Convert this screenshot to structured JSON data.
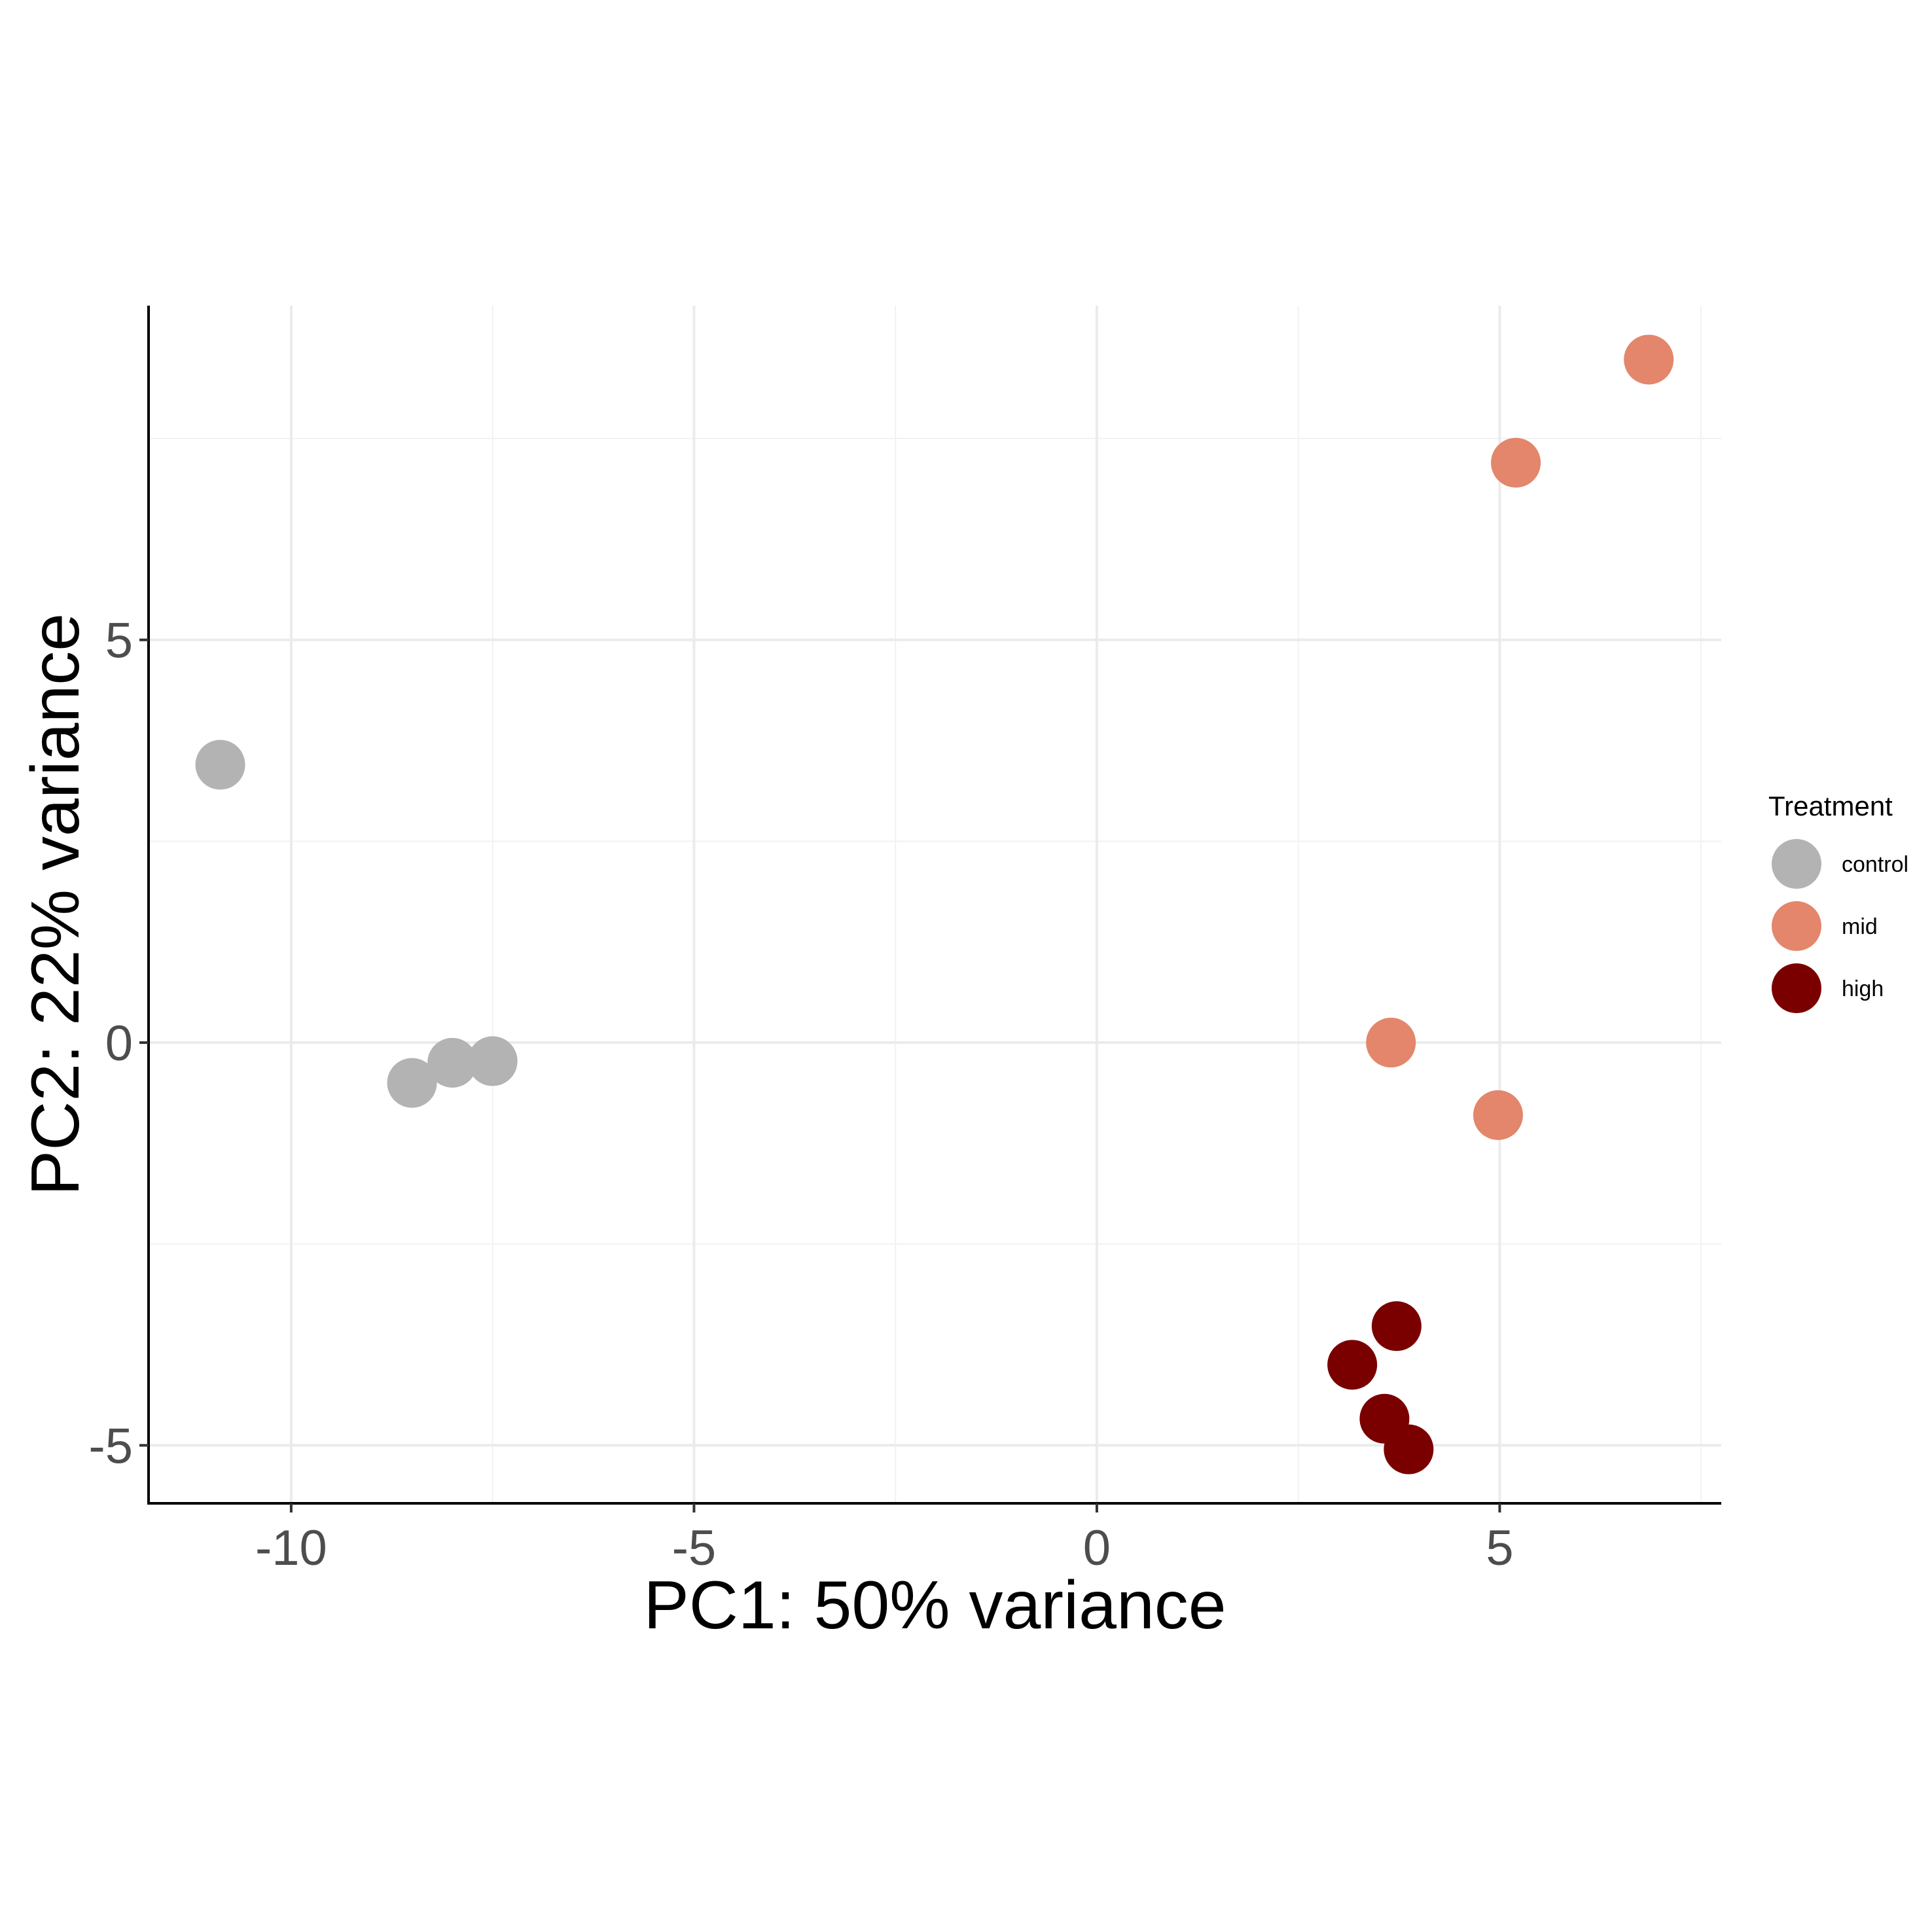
{
  "chart_data": {
    "type": "scatter",
    "title": "",
    "xlabel": "PC1: 50% variance",
    "ylabel": "PC2: 22% variance",
    "xlim": [
      -11.77,
      7.75
    ],
    "ylim": [
      -5.72,
      9.15
    ],
    "x_ticks": [
      -10,
      -5,
      0,
      5
    ],
    "x_tick_labels": [
      "-10",
      "-5",
      "0",
      "5"
    ],
    "y_ticks": [
      -5,
      0,
      5
    ],
    "y_tick_labels": [
      "-5",
      "0",
      "5"
    ],
    "grid": true,
    "legend": {
      "title": "Treatment",
      "position": "right"
    },
    "series": [
      {
        "name": "control",
        "color": "#b3b3b3",
        "points": [
          [
            -10.88,
            3.45
          ],
          [
            -8.5,
            -0.5
          ],
          [
            -8.0,
            -0.25
          ],
          [
            -7.5,
            -0.23
          ]
        ]
      },
      {
        "name": "mid",
        "color": "#e3866b",
        "points": [
          [
            6.85,
            8.48
          ],
          [
            5.2,
            7.2
          ],
          [
            3.65,
            0.0
          ],
          [
            4.98,
            -0.9
          ]
        ]
      },
      {
        "name": "high",
        "color": "#7a0000",
        "points": [
          [
            3.72,
            -3.52
          ],
          [
            3.17,
            -4.0
          ],
          [
            3.57,
            -4.67
          ],
          [
            3.87,
            -5.05
          ]
        ]
      }
    ]
  }
}
